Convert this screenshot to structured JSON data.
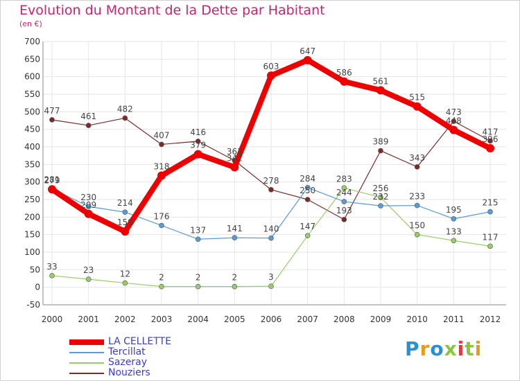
{
  "title": "Evolution du Montant de la Dette par Habitant",
  "subtitle": "(en €)",
  "brand": {
    "text": "Proxiti",
    "letters": [
      "P",
      "r",
      "o",
      "x",
      "i",
      "t",
      "i"
    ],
    "colors": [
      "#2a8fd6",
      "#e89a1a",
      "#2a8fd6",
      "#8cc63f",
      "#e23a3a",
      "#8cc63f",
      "#e89a1a"
    ]
  },
  "chart_data": {
    "type": "line",
    "title": "Evolution du Montant de la Dette par Habitant",
    "ylabel": "(en €)",
    "xlabel": "",
    "x": [
      "2000",
      "2001",
      "2002",
      "2003",
      "2004",
      "2005",
      "2006",
      "2007",
      "2008",
      "2009",
      "2010",
      "2011",
      "2012"
    ],
    "ylim": [
      -50,
      700
    ],
    "yticks": [
      -50,
      0,
      50,
      100,
      150,
      200,
      250,
      300,
      350,
      400,
      450,
      500,
      550,
      600,
      650,
      700
    ],
    "grid": true,
    "legend": "bottom-left",
    "series": [
      {
        "name": "LA CELLETTE",
        "color": "#ee0000",
        "thick": true,
        "values": [
          279,
          209,
          159,
          318,
          379,
          342,
          603,
          647,
          586,
          561,
          515,
          448,
          396
        ],
        "labels": [
          "279",
          "209",
          "159",
          "318",
          "379",
          "342",
          "603",
          "647",
          "586",
          "561",
          "515",
          "448",
          "396"
        ]
      },
      {
        "name": "Tercillat",
        "color": "#5b9bd5",
        "thick": false,
        "values": [
          281,
          230,
          214,
          176,
          137,
          141,
          140,
          284,
          244,
          232,
          233,
          195,
          215
        ],
        "labels": [
          "281",
          "230",
          "214",
          "176",
          "137",
          "141",
          "140",
          "284",
          "244",
          "232",
          "233",
          "195",
          "215"
        ]
      },
      {
        "name": "Sazeray",
        "color": "#99cc66",
        "thick": false,
        "values": [
          33,
          23,
          12,
          2,
          2,
          2,
          3,
          147,
          283,
          256,
          150,
          133,
          117
        ],
        "labels": [
          "33",
          "23",
          "12",
          "2",
          "2",
          "2",
          "3",
          "147",
          "283",
          "256",
          "150",
          "133",
          "117"
        ]
      },
      {
        "name": "Nouziers",
        "color": "#7b2a2a",
        "thick": false,
        "values": [
          477,
          461,
          482,
          407,
          416,
          361,
          278,
          250,
          193,
          389,
          343,
          473,
          417
        ],
        "labels": [
          "477",
          "461",
          "482",
          "407",
          "416",
          "361",
          "278",
          "250",
          "193",
          "389",
          "343",
          "473",
          "417"
        ]
      }
    ]
  }
}
